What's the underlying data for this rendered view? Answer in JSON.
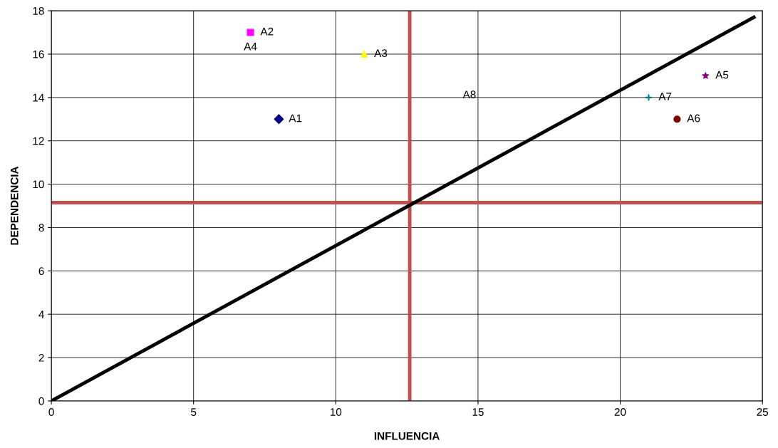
{
  "chart_data": {
    "type": "scatter",
    "xlabel": "INFLUENCIA",
    "ylabel": "DEPENDENCIA",
    "xlim": [
      0,
      25
    ],
    "ylim": [
      0,
      18
    ],
    "xticks": [
      0,
      5,
      10,
      15,
      20,
      25
    ],
    "yticks": [
      0,
      2,
      4,
      6,
      8,
      10,
      12,
      14,
      16,
      18
    ],
    "grid": true,
    "legend": false,
    "series": [
      {
        "name": "A1",
        "color": "#000080",
        "x": [
          8
        ],
        "values": [
          13
        ],
        "marker": "diamond"
      },
      {
        "name": "A2",
        "color": "#ff00ff",
        "x": [
          7
        ],
        "values": [
          17
        ],
        "marker": "square"
      },
      {
        "name": "A3",
        "color": "#ffff00",
        "x": [
          11
        ],
        "values": [
          16
        ],
        "marker": "triangle"
      },
      {
        "name": "A5",
        "color": "#800080",
        "x": [
          23
        ],
        "values": [
          15
        ],
        "marker": "star"
      },
      {
        "name": "A6",
        "color": "#800000",
        "x": [
          22
        ],
        "values": [
          13
        ],
        "marker": "circle"
      },
      {
        "name": "A7",
        "color": "#008080",
        "x": [
          21
        ],
        "values": [
          14
        ],
        "marker": "cross"
      },
      {
        "type": "line",
        "color": "#000000",
        "x": [
          0,
          24.7
        ],
        "values": [
          0,
          17.7
        ],
        "marker": "none",
        "line_style": "solid"
      }
    ],
    "annotations": [
      "A4",
      "A8"
    ],
    "ref_lines": [
      {
        "axis": "x",
        "value": 12.6,
        "color": "#c0504d"
      },
      {
        "axis": "y",
        "value": 9.15,
        "color": "#c0504d"
      }
    ]
  }
}
